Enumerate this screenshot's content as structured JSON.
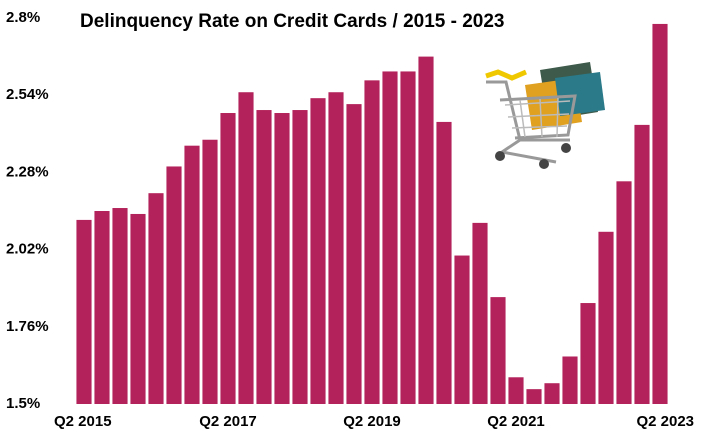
{
  "chart_data": {
    "type": "bar",
    "title": "Delinquency Rate on Credit Cards / 2015 - 2023",
    "categories": [
      "Q2 2015",
      null,
      null,
      null,
      null,
      null,
      null,
      null,
      "Q2 2017",
      null,
      null,
      null,
      null,
      null,
      null,
      null,
      "Q2 2019",
      null,
      null,
      null,
      null,
      null,
      null,
      null,
      "Q2 2021",
      null,
      null,
      null,
      null,
      null,
      null,
      null,
      "Q2 2023"
    ],
    "values": [
      2.12,
      2.15,
      2.16,
      2.14,
      2.21,
      2.3,
      2.37,
      2.39,
      2.48,
      2.55,
      2.49,
      2.48,
      2.49,
      2.53,
      2.55,
      2.51,
      2.59,
      2.62,
      2.62,
      2.67,
      2.45,
      2.0,
      2.11,
      1.86,
      1.59,
      1.55,
      1.57,
      1.66,
      1.84,
      2.08,
      2.25,
      2.44,
      2.78
    ],
    "color": "#b3225a",
    "ylim": [
      1.5,
      2.8
    ],
    "yticks": [
      {
        "value": 1.5,
        "label": "1.5%"
      },
      {
        "value": 1.76,
        "label": "1.76%"
      },
      {
        "value": 2.02,
        "label": "2.02%"
      },
      {
        "value": 2.28,
        "label": "2.28%"
      },
      {
        "value": 2.54,
        "label": "2.54%"
      },
      {
        "value": 2.8,
        "label": "2.8%"
      }
    ],
    "grid": false
  }
}
